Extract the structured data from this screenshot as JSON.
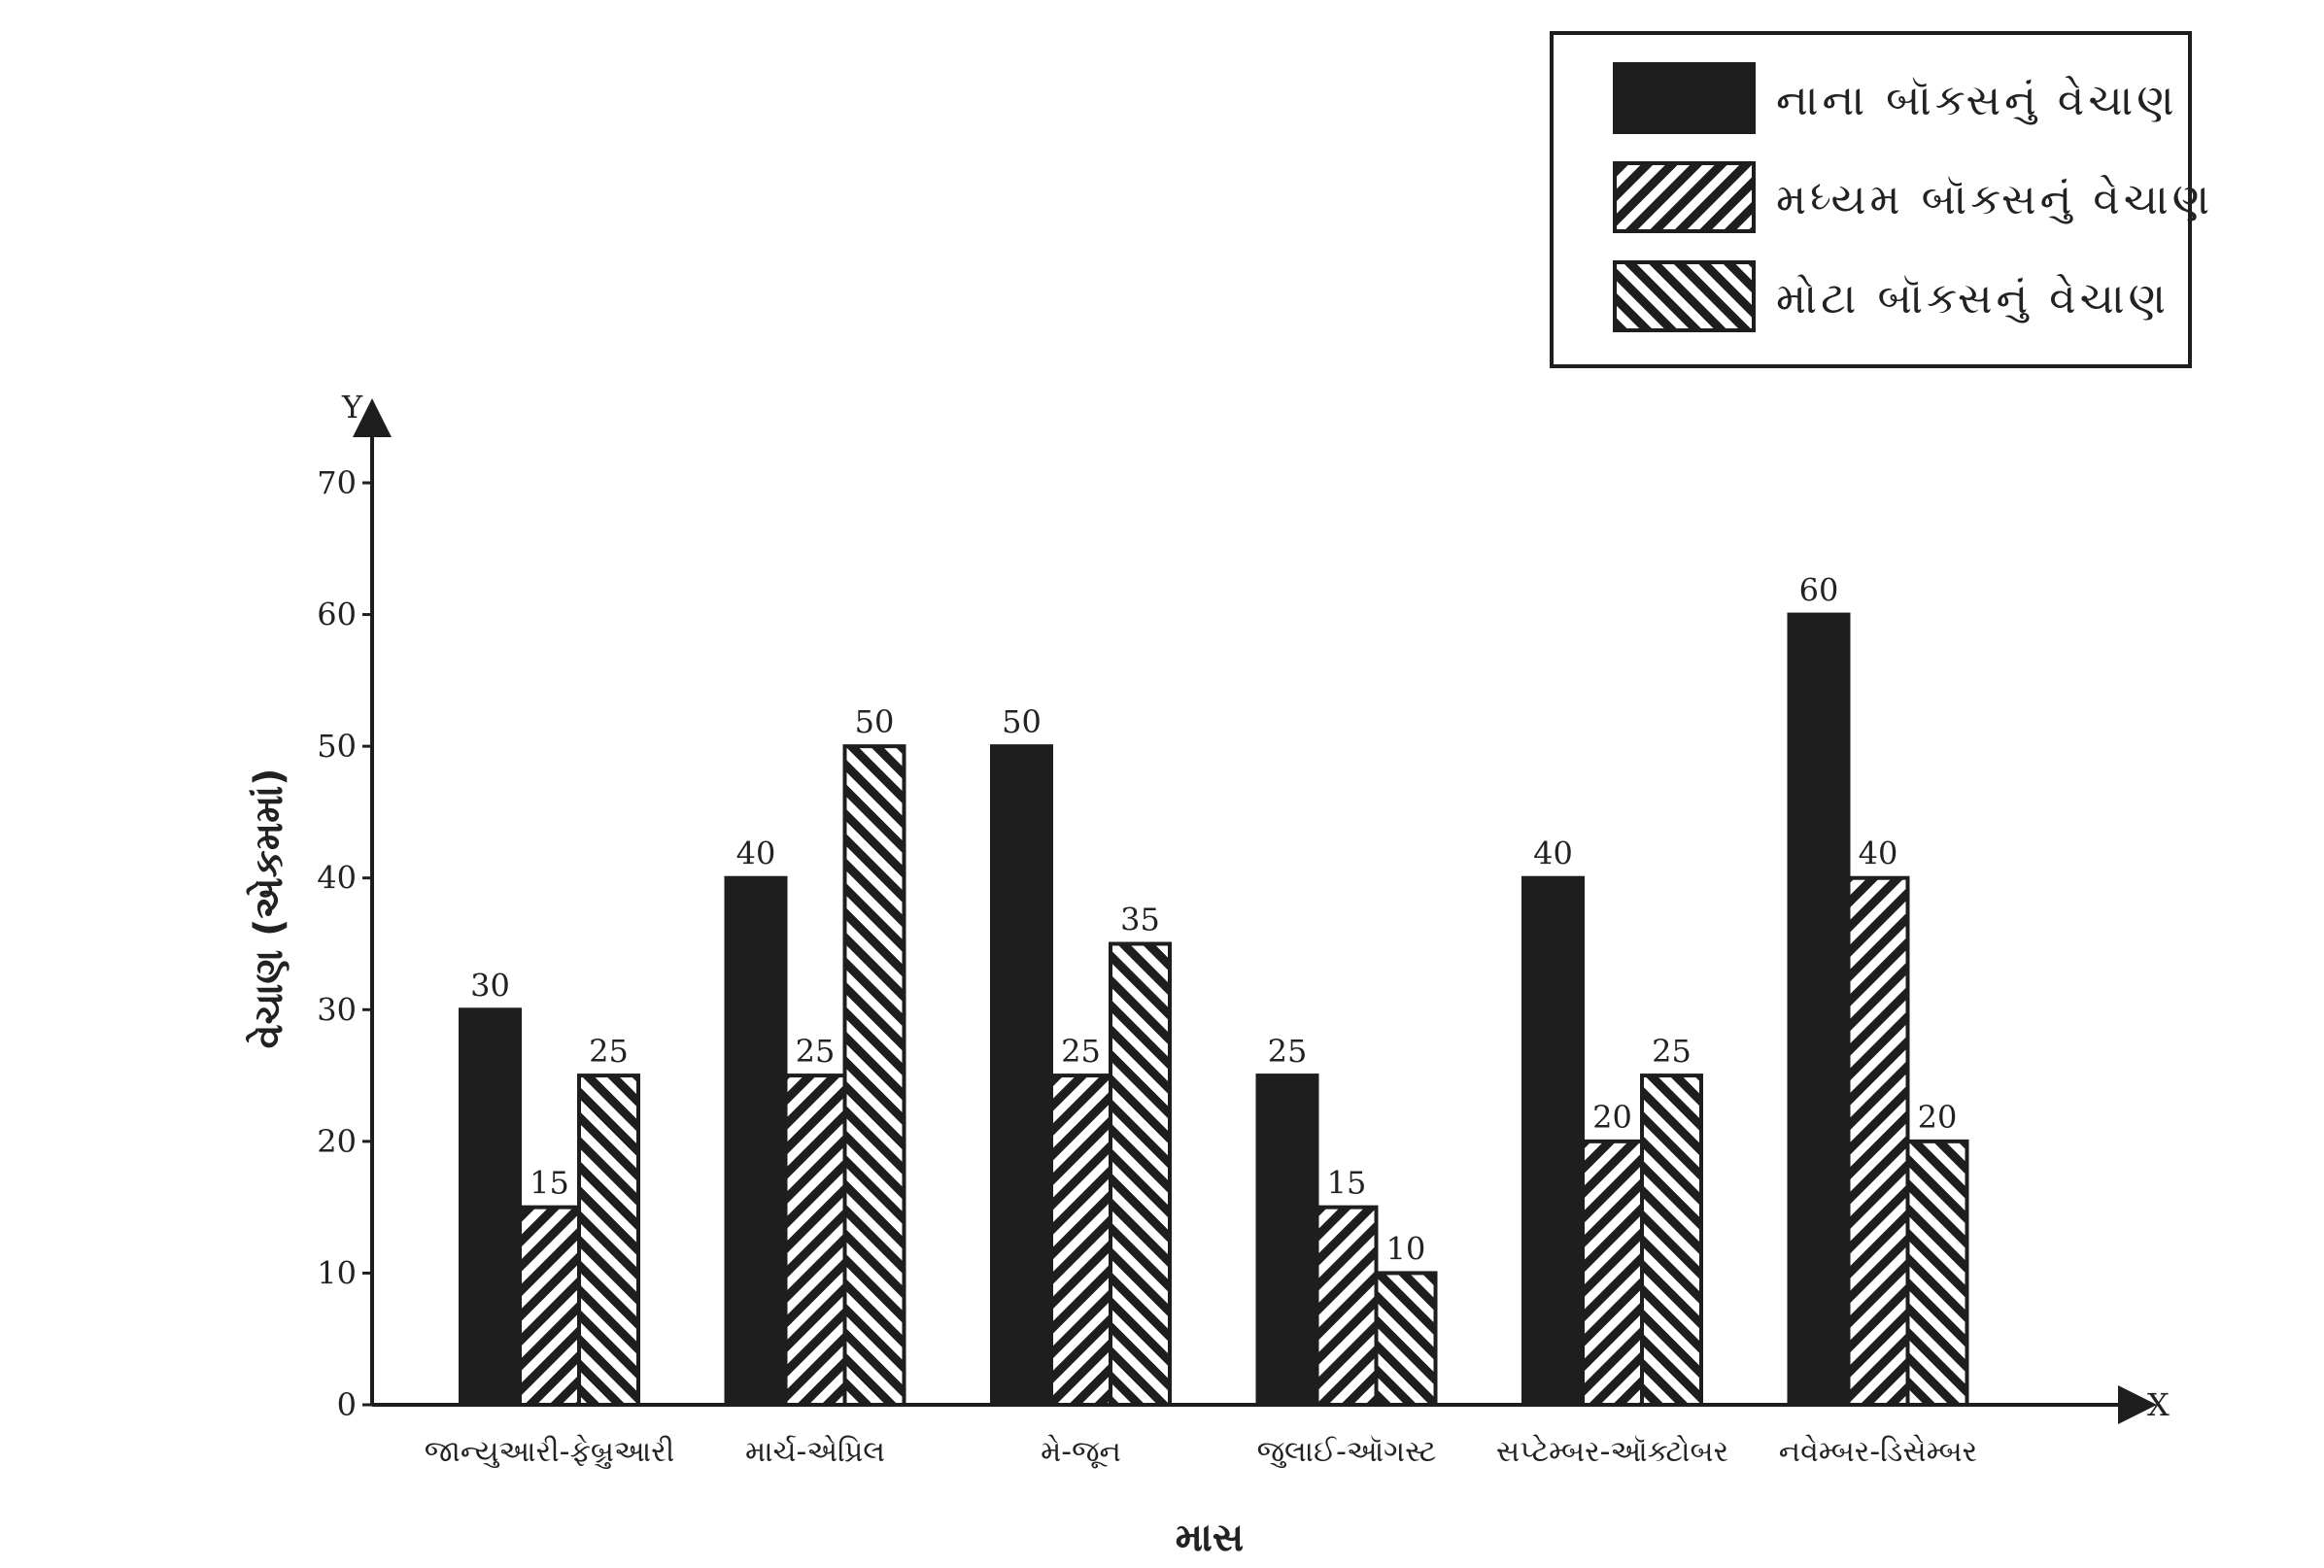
{
  "chart_data": {
    "type": "bar",
    "title": "",
    "xlabel": "માસ",
    "ylabel": "વેચાણ (એકમમાં)",
    "x_axis_letter": "X",
    "y_axis_letter": "Y",
    "ylim": [
      0,
      70
    ],
    "yticks": [
      0,
      10,
      20,
      30,
      40,
      50,
      60,
      70
    ],
    "grid": false,
    "legend_position": "top-right",
    "categories": [
      "જાન્યુઆરી-ફેબ્રુઆરી",
      "માર્ચ-એપ્રિલ",
      "મે-જૂન",
      "જુલાઈ-ઑગસ્ટ",
      "સપ્ટેમ્બર-ઑક્ટોબર",
      "નવેમ્બર-ડિસેમ્બર"
    ],
    "series": [
      {
        "name": "નાના બૉક્સનું વેચાણ",
        "pattern": "solid",
        "color": "#1e1e1e",
        "values": [
          30,
          40,
          50,
          25,
          40,
          60
        ]
      },
      {
        "name": "મધ્યમ બૉક્સનું વેચાણ",
        "pattern": "hatch-forward",
        "color": "#1e1e1e",
        "values": [
          15,
          25,
          25,
          15,
          20,
          40
        ]
      },
      {
        "name": "મોટા બૉક્સનું વેચાણ",
        "pattern": "hatch-backward",
        "color": "#1e1e1e",
        "values": [
          25,
          50,
          35,
          10,
          25,
          20
        ]
      }
    ]
  }
}
